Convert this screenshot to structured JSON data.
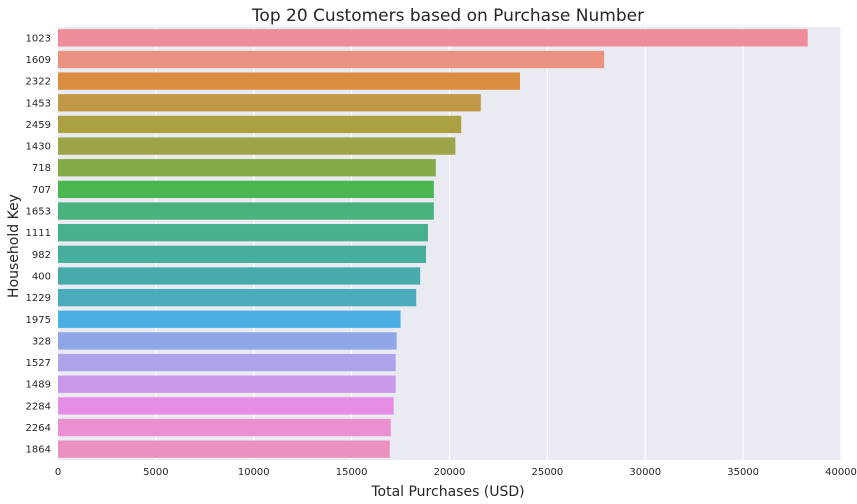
{
  "chart_data": {
    "type": "bar",
    "orientation": "horizontal",
    "title": "Top 20 Customers based on Purchase Number",
    "xlabel": "Total Purchases (USD)",
    "ylabel": "Household Key",
    "xlim": [
      0,
      40000
    ],
    "xticks": [
      0,
      5000,
      10000,
      15000,
      20000,
      25000,
      30000,
      35000,
      40000
    ],
    "grid": true,
    "background": "#eaeaf2",
    "categories": [
      "1023",
      "1609",
      "2322",
      "1453",
      "2459",
      "1430",
      "718",
      "707",
      "1653",
      "1111",
      "982",
      "400",
      "1229",
      "1975",
      "328",
      "1527",
      "1489",
      "2284",
      "2264",
      "1864"
    ],
    "values": [
      38300,
      27900,
      23600,
      21600,
      20600,
      20300,
      19300,
      19200,
      19200,
      18900,
      18800,
      18500,
      18300,
      17500,
      17300,
      17250,
      17250,
      17150,
      17000,
      16950
    ],
    "colors": [
      "#ef8c9a",
      "#ea9180",
      "#da8d3f",
      "#c09848",
      "#aba042",
      "#9da548",
      "#80ab46",
      "#4bb54f",
      "#48b27c",
      "#47b08f",
      "#47ae9d",
      "#47aca9",
      "#49abbc",
      "#4aaee3",
      "#8fa7e6",
      "#aea3ea",
      "#c998e8",
      "#e68de6",
      "#eb8fd0",
      "#ea91c2"
    ]
  }
}
